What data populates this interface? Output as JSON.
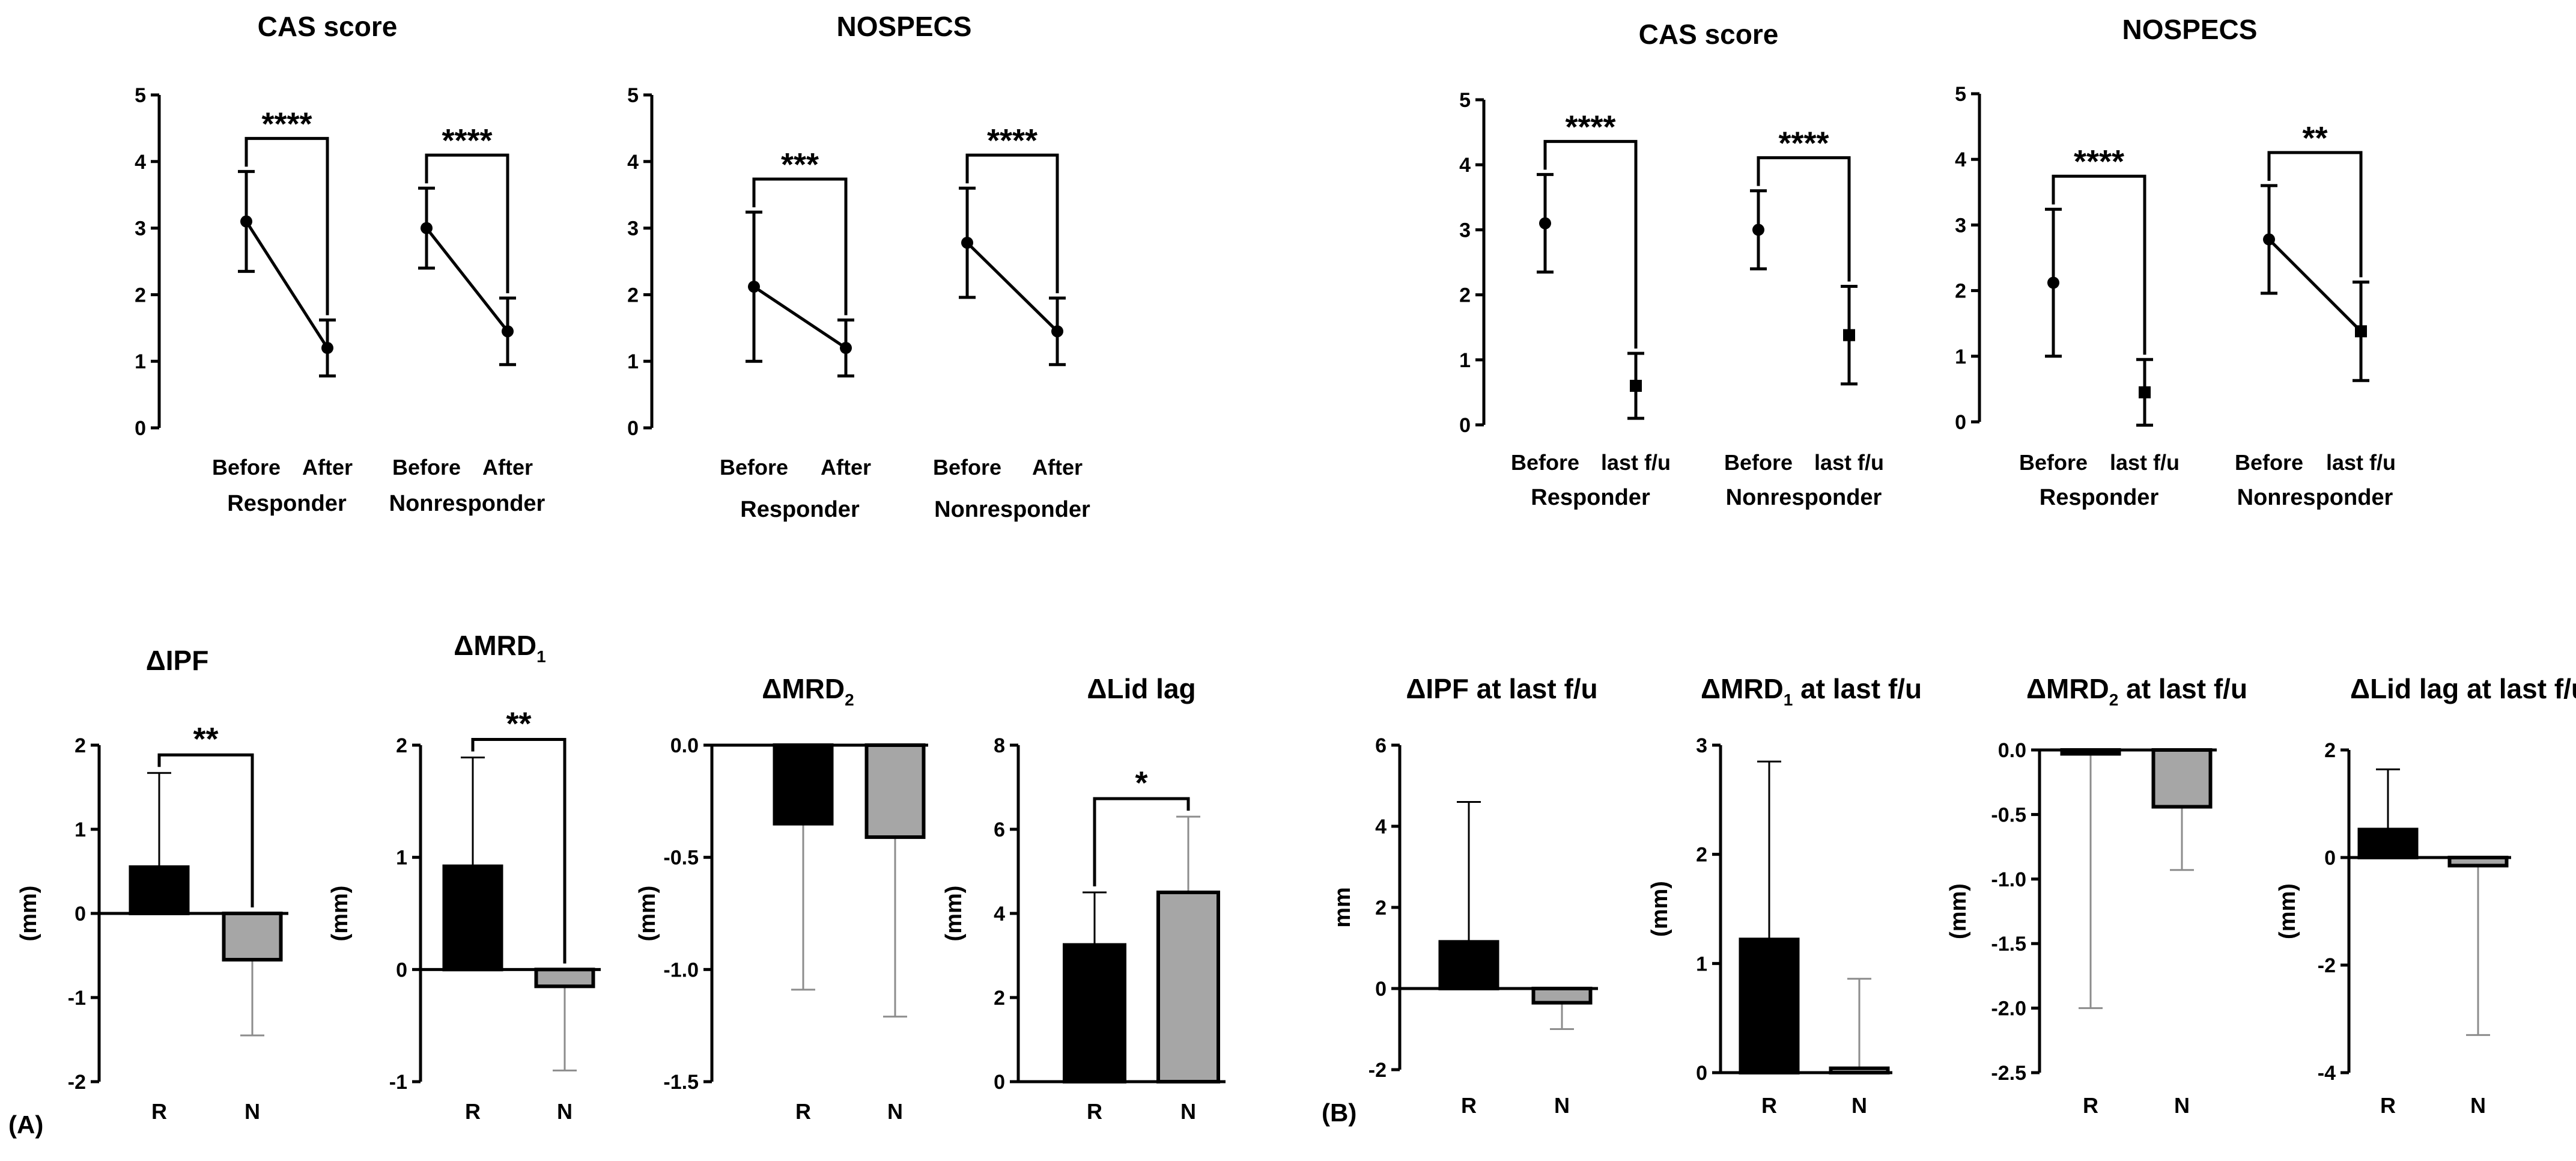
{
  "panels": {
    "a": "(A)",
    "b": "(B)"
  },
  "colors": {
    "responder": "#000000",
    "nonresponder": "#a6a6a6",
    "axis": "#000000",
    "errbar_light": "#8c8c8c"
  },
  "chart_data": [
    {
      "id": "a1",
      "type": "line",
      "title": "CAS score",
      "title_sub": "",
      "ylim": [
        0,
        5
      ],
      "yticks": [
        "0",
        "1",
        "2",
        "3",
        "4",
        "5"
      ],
      "groups": [
        {
          "name": "Responder",
          "labels": [
            "Before",
            "After"
          ],
          "values": [
            3.1,
            1.2
          ],
          "errors": [
            0.75,
            0.42
          ],
          "markers": [
            "circle",
            "circle"
          ],
          "connected": true,
          "sig": "****"
        },
        {
          "name": "Nonresponder",
          "labels": [
            "Before",
            "After"
          ],
          "values": [
            3.0,
            1.45
          ],
          "errors": [
            0.6,
            0.5
          ],
          "markers": [
            "circle",
            "circle"
          ],
          "connected": true,
          "sig": "****"
        }
      ]
    },
    {
      "id": "a2",
      "type": "line",
      "title": "NOSPECS",
      "title_sub": "",
      "ylim": [
        0,
        5
      ],
      "yticks": [
        "0",
        "1",
        "2",
        "3",
        "4",
        "5"
      ],
      "groups": [
        {
          "name": "Responder",
          "labels": [
            "Before",
            "After"
          ],
          "values": [
            2.12,
            1.2
          ],
          "errors": [
            1.12,
            0.42
          ],
          "markers": [
            "circle",
            "circle"
          ],
          "connected": true,
          "sig": "***"
        },
        {
          "name": "Nonresponder",
          "labels": [
            "Before",
            "After"
          ],
          "values": [
            2.78,
            1.45
          ],
          "errors": [
            0.82,
            0.5
          ],
          "markers": [
            "circle",
            "circle"
          ],
          "connected": true,
          "sig": "****"
        }
      ]
    },
    {
      "id": "b1",
      "type": "line",
      "title": "CAS score",
      "title_sub": "",
      "ylim": [
        0,
        5
      ],
      "yticks": [
        "0",
        "1",
        "2",
        "3",
        "4",
        "5"
      ],
      "groups": [
        {
          "name": "Responder",
          "labels": [
            "Before",
            "last f/u"
          ],
          "values": [
            3.1,
            0.6
          ],
          "errors": [
            0.75,
            0.5
          ],
          "markers": [
            "circle",
            "square"
          ],
          "connected": false,
          "sig": "****"
        },
        {
          "name": "Nonresponder",
          "labels": [
            "Before",
            "last f/u"
          ],
          "values": [
            3.0,
            1.38
          ],
          "errors": [
            0.6,
            0.75
          ],
          "markers": [
            "circle",
            "square"
          ],
          "connected": false,
          "sig": "****"
        }
      ]
    },
    {
      "id": "b2",
      "type": "line",
      "title": "NOSPECS",
      "title_sub": "",
      "ylim": [
        0,
        5
      ],
      "yticks": [
        "0",
        "1",
        "2",
        "3",
        "4",
        "5"
      ],
      "groups": [
        {
          "name": "Responder",
          "labels": [
            "Before",
            "last f/u"
          ],
          "values": [
            2.12,
            0.45
          ],
          "errors": [
            1.12,
            0.5
          ],
          "markers": [
            "circle",
            "square"
          ],
          "connected": false,
          "sig": "****"
        },
        {
          "name": "Nonresponder",
          "labels": [
            "Before",
            "last f/u"
          ],
          "values": [
            2.78,
            1.38
          ],
          "errors": [
            0.82,
            0.75
          ],
          "markers": [
            "circle",
            "square"
          ],
          "connected": true,
          "sig": "**"
        }
      ]
    },
    {
      "id": "a3",
      "type": "bar",
      "title": "ΔIPF",
      "title_sub": "",
      "title_rest": "",
      "ylabel": "(mm)",
      "ylim": [
        -2,
        2
      ],
      "yticks": [
        "-2",
        "-1",
        "0",
        "1",
        "2"
      ],
      "categories": [
        "R",
        "N"
      ],
      "values": [
        0.55,
        -0.55
      ],
      "errors": [
        1.12,
        0.9
      ],
      "sig": "**"
    },
    {
      "id": "a4",
      "type": "bar",
      "title": "ΔMRD",
      "title_sub": "1",
      "title_rest": "",
      "ylabel": "(mm)",
      "ylim": [
        -1,
        2
      ],
      "yticks": [
        "-1",
        "0",
        "1",
        "2"
      ],
      "categories": [
        "R",
        "N"
      ],
      "values": [
        0.92,
        -0.15
      ],
      "errors": [
        0.97,
        0.75
      ],
      "sig": "**"
    },
    {
      "id": "a5",
      "type": "bar",
      "title": "ΔMRD",
      "title_sub": "2",
      "title_rest": "",
      "ylabel": "(mm)",
      "ylim": [
        -1.5,
        0
      ],
      "yticks": [
        "-1.5",
        "-1.0",
        "-0.5",
        "0.0"
      ],
      "categories": [
        "R",
        "N"
      ],
      "values": [
        -0.35,
        -0.41
      ],
      "errors": [
        0.74,
        0.8
      ],
      "sig": ""
    },
    {
      "id": "a6",
      "type": "bar",
      "title": "ΔLid lag",
      "title_sub": "",
      "title_rest": "",
      "ylabel": "(mm)",
      "ylim": [
        0,
        8
      ],
      "yticks": [
        "0",
        "2",
        "4",
        "6",
        "8"
      ],
      "categories": [
        "R",
        "N"
      ],
      "values": [
        3.25,
        4.5
      ],
      "errors": [
        1.25,
        1.8
      ],
      "sig": "*"
    },
    {
      "id": "b3",
      "type": "bar",
      "title": "ΔIPF at last f/u",
      "title_sub": "",
      "title_rest": "",
      "ylabel": "mm",
      "ylim": [
        -2,
        6
      ],
      "yticks": [
        "-2",
        "0",
        "2",
        "4",
        "6"
      ],
      "categories": [
        "R",
        "N"
      ],
      "values": [
        1.15,
        -0.35
      ],
      "errors": [
        3.45,
        0.65
      ],
      "sig": ""
    },
    {
      "id": "b4",
      "type": "bar",
      "title": "ΔMRD",
      "title_sub": "1",
      "title_rest": " at last f/u",
      "ylabel": "(mm)",
      "ylim": [
        0,
        3
      ],
      "yticks": [
        "0",
        "1",
        "2",
        "3"
      ],
      "categories": [
        "R",
        "N"
      ],
      "values": [
        1.22,
        0.04
      ],
      "errors": [
        1.63,
        0.82
      ],
      "sig": ""
    },
    {
      "id": "b5",
      "type": "bar",
      "title": "ΔMRD",
      "title_sub": "2",
      "title_rest": " at last f/u",
      "ylabel": "(mm)",
      "ylim": [
        -2.5,
        0
      ],
      "yticks": [
        "-2.5",
        "-2.0",
        "-1.5",
        "-1.0",
        "-0.5",
        "0.0"
      ],
      "categories": [
        "R",
        "N"
      ],
      "values": [
        -0.03,
        -0.44
      ],
      "errors": [
        1.97,
        0.49
      ],
      "sig": ""
    },
    {
      "id": "b6",
      "type": "bar",
      "title": "ΔLid lag at last f/u",
      "title_sub": "",
      "title_rest": "",
      "ylabel": "(mm)",
      "ylim": [
        -4,
        2
      ],
      "yticks": [
        "-4",
        "-2",
        "0",
        "2"
      ],
      "categories": [
        "R",
        "N"
      ],
      "values": [
        0.52,
        -0.15
      ],
      "errors": [
        1.12,
        3.15
      ],
      "sig": ""
    }
  ]
}
